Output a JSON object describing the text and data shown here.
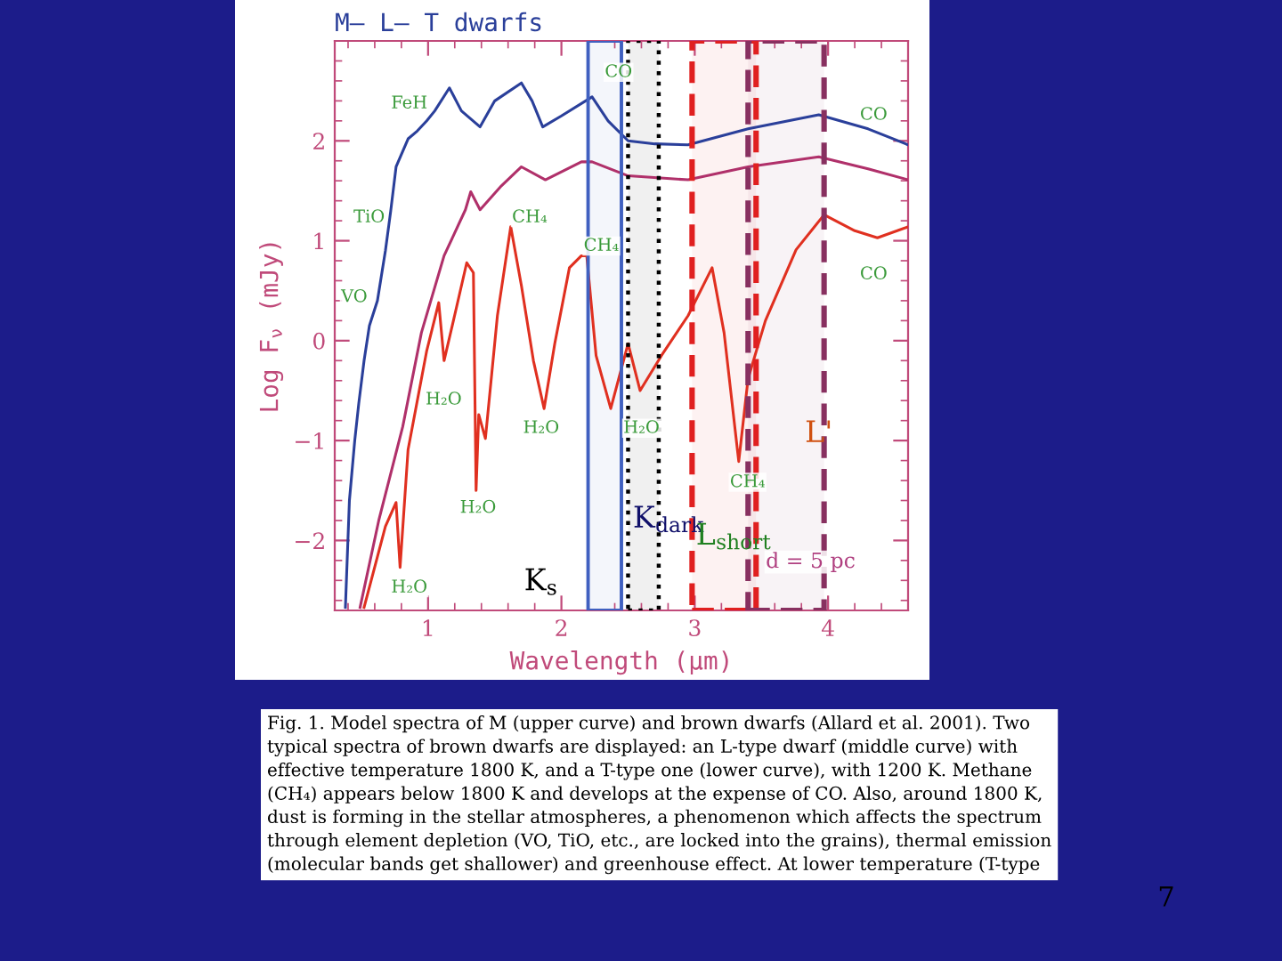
{
  "chart_data": {
    "type": "line",
    "title": "M– L– T dwarfs",
    "xlabel": "Wavelength (μm)",
    "ylabel": "Log F$_{ν}$ (mJy)",
    "xlim": [
      0.3,
      4.6
    ],
    "ylim": [
      -2.7,
      3
    ],
    "xticks": [
      1,
      2,
      3,
      4
    ],
    "yticks": [
      -2,
      -1,
      0,
      1,
      2
    ],
    "grid": false,
    "line_style": "solid",
    "marker": "none",
    "series": [
      {
        "color": "#2a3f9a",
        "x": [
          0.38,
          0.41,
          0.45,
          0.48,
          0.52,
          0.56,
          0.62,
          0.68,
          0.72,
          0.76,
          0.85,
          0.92,
          0.99,
          1.05,
          1.16,
          1.25,
          1.39,
          1.5,
          1.7,
          1.78,
          1.86,
          2.0,
          2.23,
          2.35,
          2.5,
          2.7,
          2.95,
          3.4,
          3.93,
          4.3,
          4.6
        ],
        "values": [
          -2.67,
          -1.6,
          -1.0,
          -0.63,
          -0.2,
          0.15,
          0.4,
          0.9,
          1.3,
          1.74,
          2.02,
          2.1,
          2.2,
          2.3,
          2.53,
          2.3,
          2.14,
          2.4,
          2.58,
          2.4,
          2.14,
          2.25,
          2.44,
          2.2,
          2.0,
          1.97,
          1.96,
          2.12,
          2.26,
          2.12,
          1.96
        ]
      },
      {
        "color": "#b0306a",
        "x": [
          0.49,
          0.63,
          0.81,
          0.95,
          1.12,
          1.28,
          1.32,
          1.39,
          1.55,
          1.7,
          1.88,
          2.15,
          2.23,
          2.5,
          2.95,
          3.4,
          3.93,
          4.3,
          4.6
        ],
        "values": [
          -2.67,
          -1.8,
          -0.86,
          0.08,
          0.85,
          1.31,
          1.49,
          1.31,
          1.55,
          1.74,
          1.61,
          1.79,
          1.79,
          1.65,
          1.61,
          1.74,
          1.84,
          1.72,
          1.61
        ]
      },
      {
        "color": "#e03020",
        "x": [
          0.52,
          0.68,
          0.76,
          0.79,
          0.85,
          0.99,
          1.08,
          1.12,
          1.19,
          1.29,
          1.34,
          1.36,
          1.38,
          1.43,
          1.52,
          1.62,
          1.7,
          1.79,
          1.87,
          1.95,
          2.06,
          2.15,
          2.19,
          2.26,
          2.37,
          2.5,
          2.59,
          2.75,
          2.95,
          3.13,
          3.22,
          3.33,
          3.4,
          3.53,
          3.76,
          3.97,
          4.2,
          4.37,
          4.6
        ],
        "values": [
          -2.67,
          -1.86,
          -1.62,
          -2.27,
          -1.09,
          -0.1,
          0.38,
          -0.2,
          0.2,
          0.78,
          0.68,
          -1.5,
          -0.74,
          -0.98,
          0.25,
          1.14,
          0.55,
          -0.2,
          -0.68,
          -0.03,
          0.73,
          0.85,
          0.85,
          -0.15,
          -0.68,
          -0.03,
          -0.5,
          -0.15,
          0.25,
          0.73,
          0.08,
          -1.21,
          -0.38,
          0.2,
          0.91,
          1.26,
          1.1,
          1.03,
          1.14
        ]
      }
    ],
    "bands": [
      {
        "axis": "x",
        "from": 2.2,
        "to": 2.45,
        "label": "K$_{s}$",
        "color": "#4060c0"
      },
      {
        "axis": "x",
        "from": 2.5,
        "to": 2.73,
        "label": "K$_{dark}$",
        "color": "#000000"
      },
      {
        "axis": "x",
        "from": 2.98,
        "to": 3.46,
        "label": "L$_{short}$",
        "color": "#e02020"
      },
      {
        "axis": "x",
        "from": 3.4,
        "to": 3.97,
        "label": "L'",
        "color": "#883060"
      }
    ],
    "annotations": [
      "FeH",
      "TiO",
      "VO",
      "CH₄",
      "H₂O",
      "H₂O",
      "H₂O",
      "H₂O",
      "CO",
      "CH₄",
      "H₂O",
      "CO",
      "CO",
      "CH₄",
      "d = 5 pc",
      "Fig. 1. Model spectra of M (upper curve) and brown dwarfs (Allard et al. 2001). Two\ntypical spectra of brown dwarfs are displayed: an L-type dwarf (middle curve) with\neffective temperature 1800 K, and a T-type one (lower curve), with 1200 K. Methane\n(CH₄) appears below 1800 K and develops at the expense of CO. Also, around 1800 K,\ndust is forming in the stellar atmospheres, a phenomenon which affects the spectrum\nthrough element depletion (VO, TiO, etc., are locked into the grains), thermal emission\n(molecular bands get shallower) and greenhouse effect. At lower temperature (T-type",
      "7"
    ]
  }
}
